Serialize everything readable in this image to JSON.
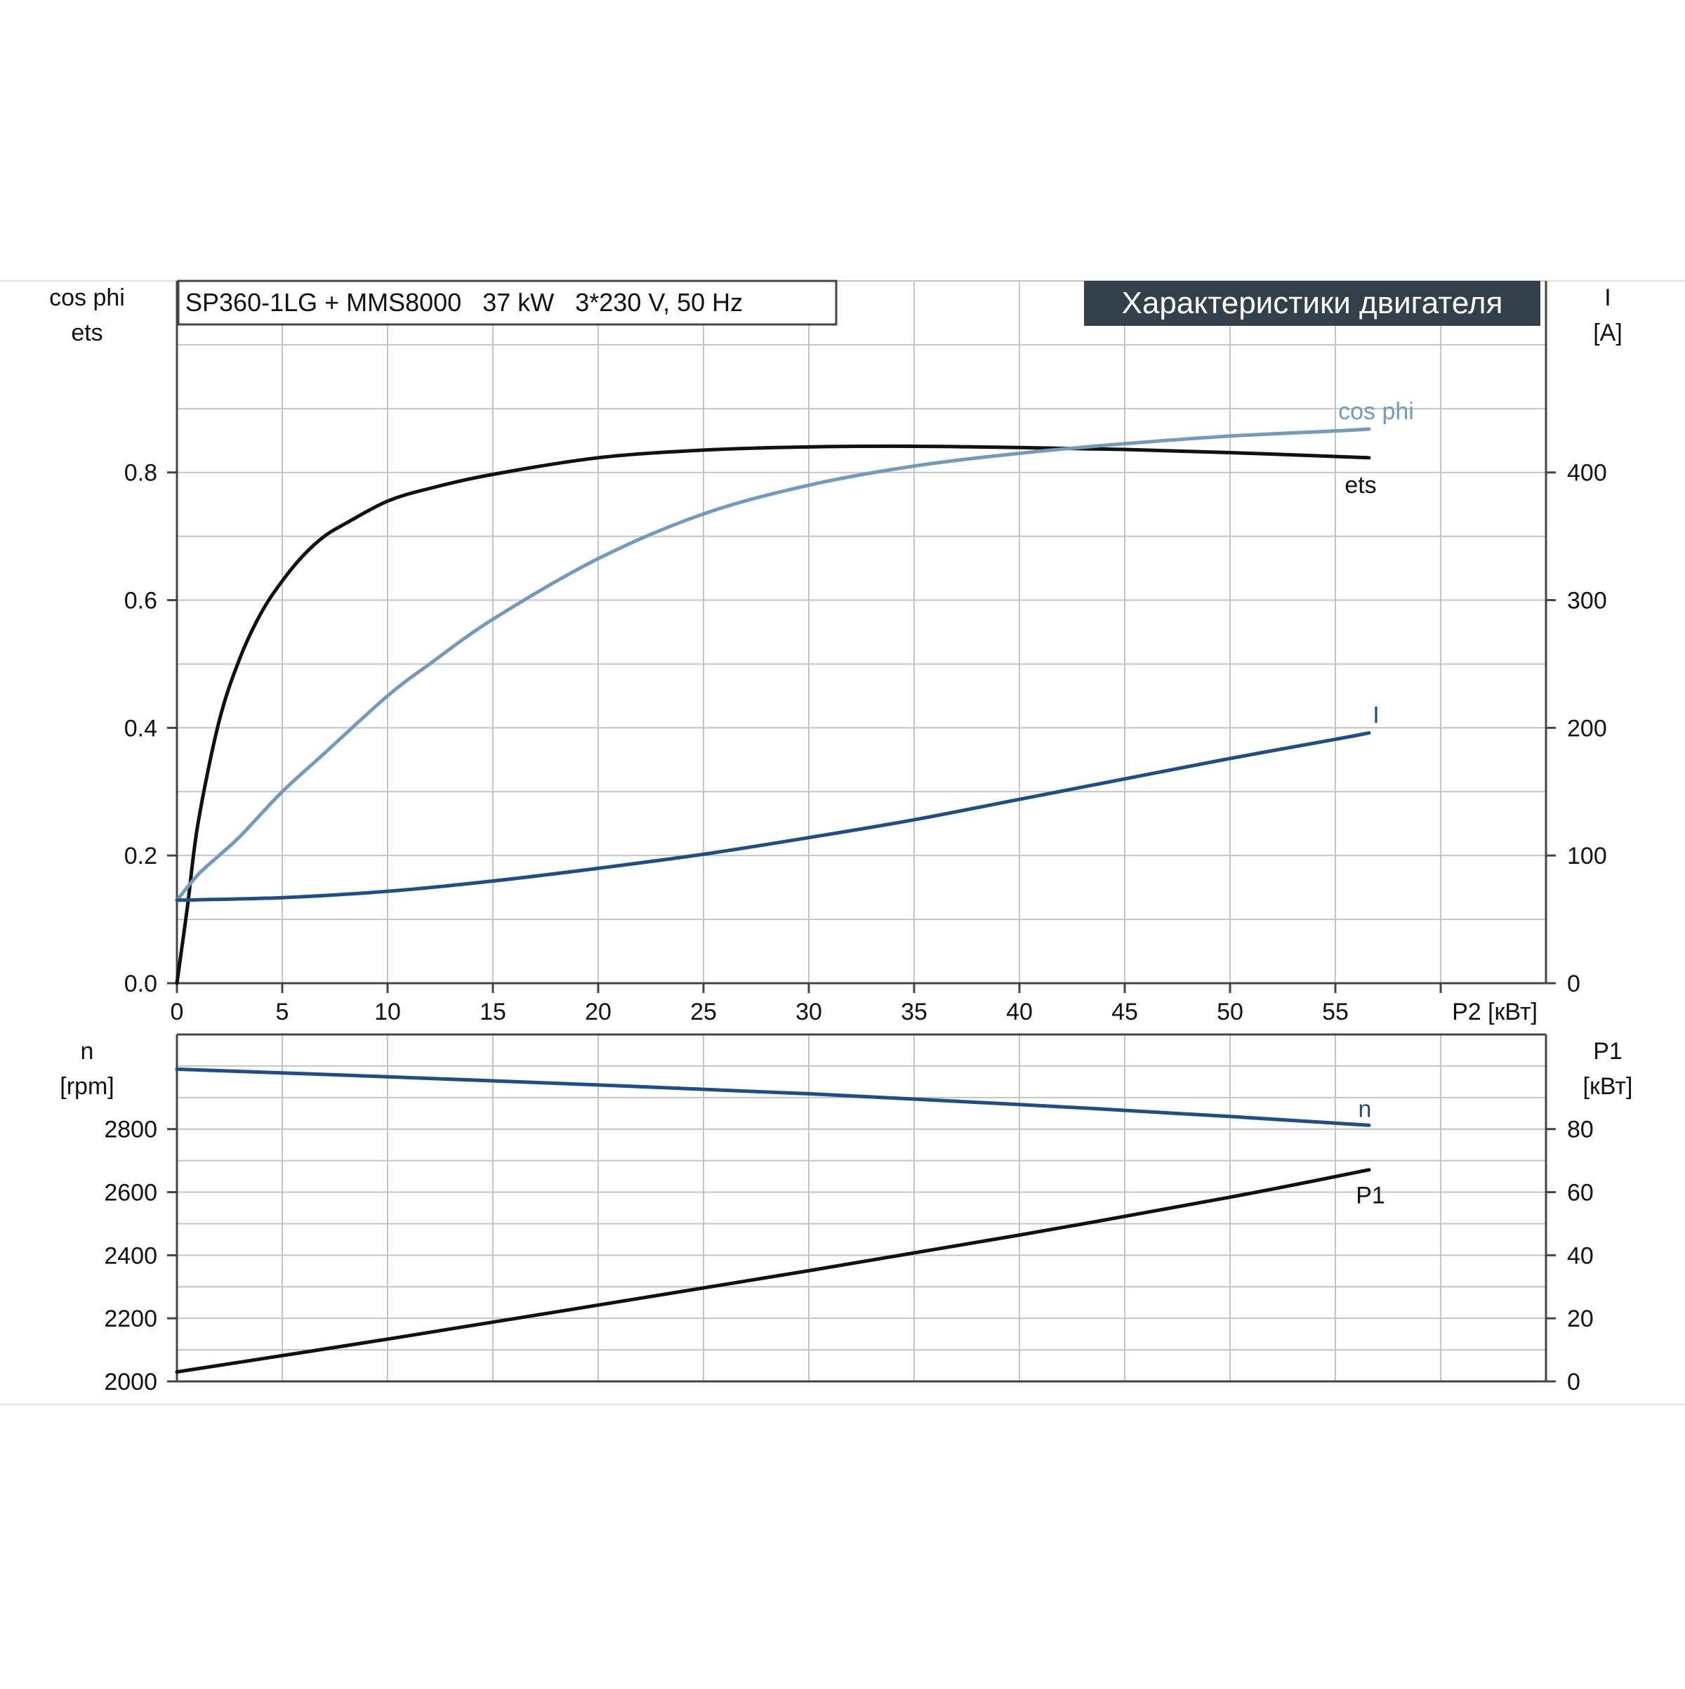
{
  "header": {
    "product_label": "SP360-1LG + MMS8000   37 kW   3*230 V, 50 Hz",
    "title": "Характеристики двигателя"
  },
  "colors": {
    "background": "#ffffff",
    "grid": "#c4c4c4",
    "axis": "#444444",
    "title_bg": "#333f4b",
    "title_fg": "#ffffff",
    "ets": "#111111",
    "cos_phi": "#7399bf",
    "I": "#1f4e86",
    "n": "#1f4e86",
    "P1": "#111111"
  },
  "chart_data": [
    {
      "type": "line",
      "panel": "top",
      "title": "Характеристики двигателя",
      "subtitle": "SP360-1LG + MMS8000   37 kW   3*230 V, 50 Hz",
      "x_axis": {
        "label": "P2 [кВт]",
        "range": [
          0,
          65
        ],
        "ticks": [
          0,
          5,
          10,
          15,
          20,
          25,
          30,
          35,
          40,
          45,
          50,
          55
        ]
      },
      "y_left": {
        "label_lines": [
          "cos phi",
          "ets"
        ],
        "range": [
          0,
          1.1
        ],
        "ticks": [
          0.0,
          0.2,
          0.4,
          0.6,
          0.8
        ],
        "tick_labels": [
          "0.0",
          "0.2",
          "0.4",
          "0.6",
          "0.8"
        ]
      },
      "y_right": {
        "label_lines": [
          "I",
          "[A]"
        ],
        "range": [
          0,
          550
        ],
        "ticks": [
          0,
          100,
          200,
          300,
          400
        ],
        "tick_labels": [
          "0",
          "100",
          "200",
          "300",
          "400"
        ]
      },
      "grid": true,
      "series": [
        {
          "name": "ets",
          "axis": "left",
          "color_key": "ets",
          "x": [
            0,
            0.5,
            1,
            2,
            3,
            4,
            5,
            6,
            7,
            8,
            10,
            12,
            15,
            20,
            25,
            30,
            35,
            40,
            45,
            50,
            55,
            56.6
          ],
          "y": [
            0,
            0.12,
            0.25,
            0.41,
            0.51,
            0.58,
            0.63,
            0.67,
            0.7,
            0.72,
            0.755,
            0.775,
            0.797,
            0.823,
            0.835,
            0.84,
            0.841,
            0.839,
            0.836,
            0.831,
            0.825,
            0.823
          ]
        },
        {
          "name": "cos phi",
          "axis": "left",
          "color_key": "cos_phi",
          "x": [
            0,
            1,
            2,
            3,
            5,
            7,
            10,
            12,
            15,
            20,
            25,
            30,
            35,
            40,
            45,
            50,
            55,
            56.6
          ],
          "y": [
            0.13,
            0.17,
            0.2,
            0.23,
            0.3,
            0.36,
            0.45,
            0.5,
            0.57,
            0.665,
            0.735,
            0.78,
            0.81,
            0.83,
            0.845,
            0.857,
            0.865,
            0.868
          ]
        },
        {
          "name": "I",
          "axis": "right",
          "color_key": "I",
          "x": [
            0,
            5,
            10,
            15,
            20,
            25,
            30,
            35,
            40,
            45,
            50,
            55,
            56.6
          ],
          "y": [
            65,
            67,
            72,
            80,
            90,
            101,
            114,
            128,
            144,
            160,
            176,
            191,
            196
          ]
        }
      ]
    },
    {
      "type": "line",
      "panel": "bottom",
      "x_axis": {
        "range": [
          0,
          65
        ]
      },
      "y_left": {
        "label_lines": [
          "n",
          "[rpm]"
        ],
        "range": [
          2000,
          3100
        ],
        "ticks": [
          2000,
          2200,
          2400,
          2600,
          2800
        ],
        "tick_labels": [
          "2000",
          "2200",
          "2400",
          "2600",
          "2800"
        ]
      },
      "y_right": {
        "label_lines": [
          "P1",
          "[кВт]"
        ],
        "range": [
          0,
          110
        ],
        "ticks": [
          0,
          20,
          40,
          60,
          80
        ],
        "tick_labels": [
          "0",
          "20",
          "40",
          "60",
          "80"
        ]
      },
      "grid": true,
      "series": [
        {
          "name": "n",
          "axis": "left",
          "color_key": "n",
          "x": [
            0,
            10,
            20,
            30,
            40,
            50,
            56.6
          ],
          "y": [
            2990,
            2966,
            2940,
            2912,
            2878,
            2840,
            2812
          ]
        },
        {
          "name": "P1",
          "axis": "right",
          "color_key": "P1",
          "x": [
            0,
            10,
            20,
            30,
            40,
            50,
            56.6
          ],
          "y": [
            3,
            13.4,
            24.2,
            35.1,
            46.4,
            58.4,
            67.1
          ]
        }
      ]
    }
  ]
}
